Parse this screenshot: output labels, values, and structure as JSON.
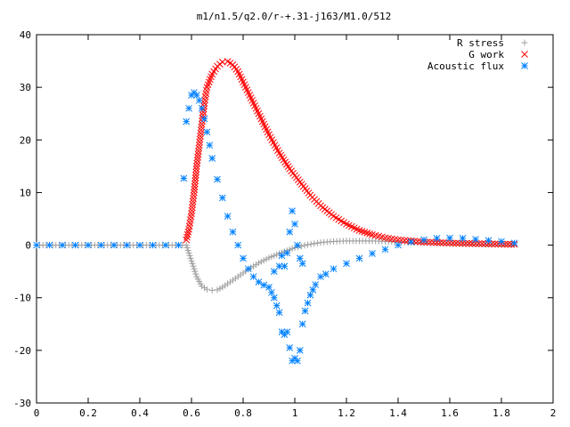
{
  "chart_data": {
    "type": "scatter",
    "title": "m1/n1.5/q2.0/r-+.31-j163/M1.0/512",
    "xlabel": "",
    "ylabel": "",
    "xlim": [
      0,
      2
    ],
    "ylim": [
      -30,
      40
    ],
    "xticks": [
      0,
      0.2,
      0.4,
      0.6,
      0.8,
      1,
      1.2,
      1.4,
      1.6,
      1.8,
      2
    ],
    "xtick_labels": [
      "0",
      "0.2",
      "0.4",
      "0.6",
      "0.8",
      "1",
      "1.2",
      "1.4",
      "1.6",
      "1.8",
      "2"
    ],
    "yticks": [
      -30,
      -20,
      -10,
      0,
      10,
      20,
      30,
      40
    ],
    "ytick_labels": [
      "-30",
      "-20",
      "-10",
      "0",
      "10",
      "20",
      "30",
      "40"
    ],
    "grid": false,
    "legend_position": "top-right",
    "series": [
      {
        "name": "R stress",
        "color": "#a0a0a0",
        "marker": "plus",
        "points": [
          [
            0.0,
            0
          ],
          [
            0.05,
            0
          ],
          [
            0.1,
            0
          ],
          [
            0.15,
            0
          ],
          [
            0.2,
            0
          ],
          [
            0.25,
            0
          ],
          [
            0.3,
            0
          ],
          [
            0.35,
            0
          ],
          [
            0.4,
            0
          ],
          [
            0.45,
            0
          ],
          [
            0.5,
            0
          ],
          [
            0.55,
            0
          ],
          [
            0.58,
            0
          ],
          [
            0.6,
            -3
          ],
          [
            0.62,
            -6
          ],
          [
            0.64,
            -7.8
          ],
          [
            0.66,
            -8.4
          ],
          [
            0.68,
            -8.6
          ],
          [
            0.7,
            -8.5
          ],
          [
            0.72,
            -8.0
          ],
          [
            0.75,
            -7.0
          ],
          [
            0.78,
            -6.0
          ],
          [
            0.82,
            -4.6
          ],
          [
            0.86,
            -3.4
          ],
          [
            0.9,
            -2.4
          ],
          [
            0.95,
            -1.4
          ],
          [
            1.0,
            -0.5
          ],
          [
            1.05,
            0.1
          ],
          [
            1.1,
            0.5
          ],
          [
            1.15,
            0.7
          ],
          [
            1.2,
            0.8
          ],
          [
            1.25,
            0.8
          ],
          [
            1.3,
            0.8
          ],
          [
            1.35,
            0.7
          ],
          [
            1.4,
            0.6
          ],
          [
            1.45,
            0.5
          ],
          [
            1.5,
            0.4
          ],
          [
            1.55,
            0.35
          ],
          [
            1.6,
            0.3
          ],
          [
            1.65,
            0.25
          ],
          [
            1.7,
            0.2
          ],
          [
            1.75,
            0.15
          ],
          [
            1.8,
            0.1
          ],
          [
            1.85,
            0.05
          ]
        ]
      },
      {
        "name": "G work",
        "color": "#ff0000",
        "marker": "cross",
        "points": [
          [
            0.58,
            1
          ],
          [
            0.59,
            3
          ],
          [
            0.6,
            6
          ],
          [
            0.61,
            10
          ],
          [
            0.62,
            15
          ],
          [
            0.63,
            19
          ],
          [
            0.64,
            23
          ],
          [
            0.65,
            27
          ],
          [
            0.66,
            30
          ],
          [
            0.68,
            32.5
          ],
          [
            0.7,
            34
          ],
          [
            0.72,
            34.8
          ],
          [
            0.74,
            34.9
          ],
          [
            0.76,
            34.3
          ],
          [
            0.78,
            33.0
          ],
          [
            0.8,
            31.0
          ],
          [
            0.83,
            28.0
          ],
          [
            0.86,
            25.0
          ],
          [
            0.9,
            21.0
          ],
          [
            0.94,
            17.5
          ],
          [
            0.98,
            14.5
          ],
          [
            1.02,
            12.0
          ],
          [
            1.06,
            9.5
          ],
          [
            1.1,
            7.5
          ],
          [
            1.15,
            5.5
          ],
          [
            1.2,
            4.0
          ],
          [
            1.25,
            2.8
          ],
          [
            1.3,
            2.0
          ],
          [
            1.35,
            1.4
          ],
          [
            1.4,
            1.0
          ],
          [
            1.45,
            0.8
          ],
          [
            1.5,
            0.6
          ],
          [
            1.55,
            0.5
          ],
          [
            1.6,
            0.4
          ],
          [
            1.65,
            0.35
          ],
          [
            1.7,
            0.3
          ],
          [
            1.75,
            0.25
          ],
          [
            1.8,
            0.2
          ],
          [
            1.85,
            0.15
          ]
        ]
      },
      {
        "name": "Acoustic flux",
        "color": "#0080ff",
        "marker": "star",
        "points": [
          [
            0.0,
            0
          ],
          [
            0.05,
            0
          ],
          [
            0.1,
            0
          ],
          [
            0.15,
            0
          ],
          [
            0.2,
            0
          ],
          [
            0.25,
            0
          ],
          [
            0.3,
            0
          ],
          [
            0.35,
            0
          ],
          [
            0.4,
            0
          ],
          [
            0.45,
            0
          ],
          [
            0.5,
            0
          ],
          [
            0.55,
            0
          ],
          [
            0.57,
            12.7
          ],
          [
            0.58,
            23.5
          ],
          [
            0.59,
            26
          ],
          [
            0.6,
            28.5
          ],
          [
            0.61,
            29
          ],
          [
            0.62,
            28.5
          ],
          [
            0.63,
            27.5
          ],
          [
            0.64,
            26
          ],
          [
            0.65,
            24
          ],
          [
            0.66,
            21.5
          ],
          [
            0.67,
            19
          ],
          [
            0.68,
            16.5
          ],
          [
            0.7,
            12.5
          ],
          [
            0.72,
            9.0
          ],
          [
            0.74,
            5.5
          ],
          [
            0.76,
            2.5
          ],
          [
            0.78,
            0
          ],
          [
            0.8,
            -2.5
          ],
          [
            0.82,
            -4.5
          ],
          [
            0.84,
            -6.0
          ],
          [
            0.86,
            -7.0
          ],
          [
            0.88,
            -7.6
          ],
          [
            0.9,
            -8.0
          ],
          [
            0.91,
            -9.0
          ],
          [
            0.92,
            -10.0
          ],
          [
            0.93,
            -11.5
          ],
          [
            0.94,
            -12.8
          ],
          [
            0.95,
            -16.5
          ],
          [
            0.96,
            -17.0
          ],
          [
            0.97,
            -16.5
          ],
          [
            0.98,
            -19.5
          ],
          [
            0.99,
            -22.0
          ],
          [
            1.0,
            -21.5
          ],
          [
            1.01,
            -22.0
          ],
          [
            1.02,
            -20.0
          ],
          [
            1.03,
            -15.0
          ],
          [
            1.04,
            -12.5
          ],
          [
            1.05,
            -11.0
          ],
          [
            1.06,
            -9.5
          ],
          [
            1.07,
            -8.5
          ],
          [
            1.08,
            -7.5
          ],
          [
            0.95,
            -2.0
          ],
          [
            0.96,
            -4.0
          ],
          [
            0.97,
            -1.5
          ],
          [
            0.98,
            2.5
          ],
          [
            0.99,
            6.5
          ],
          [
            1.0,
            4.0
          ],
          [
            1.01,
            0
          ],
          [
            1.02,
            -2.5
          ],
          [
            1.03,
            -3.5
          ],
          [
            0.92,
            -5.0
          ],
          [
            0.94,
            -4.0
          ],
          [
            1.1,
            -6.0
          ],
          [
            1.12,
            -5.5
          ],
          [
            1.15,
            -4.5
          ],
          [
            1.2,
            -3.5
          ],
          [
            1.25,
            -2.5
          ],
          [
            1.3,
            -1.6
          ],
          [
            1.35,
            -0.8
          ],
          [
            1.4,
            0
          ],
          [
            1.45,
            0.6
          ],
          [
            1.5,
            1.0
          ],
          [
            1.55,
            1.3
          ],
          [
            1.6,
            1.35
          ],
          [
            1.65,
            1.3
          ],
          [
            1.7,
            1.1
          ],
          [
            1.75,
            0.9
          ],
          [
            1.8,
            0.7
          ],
          [
            1.85,
            0.4
          ]
        ]
      }
    ]
  }
}
